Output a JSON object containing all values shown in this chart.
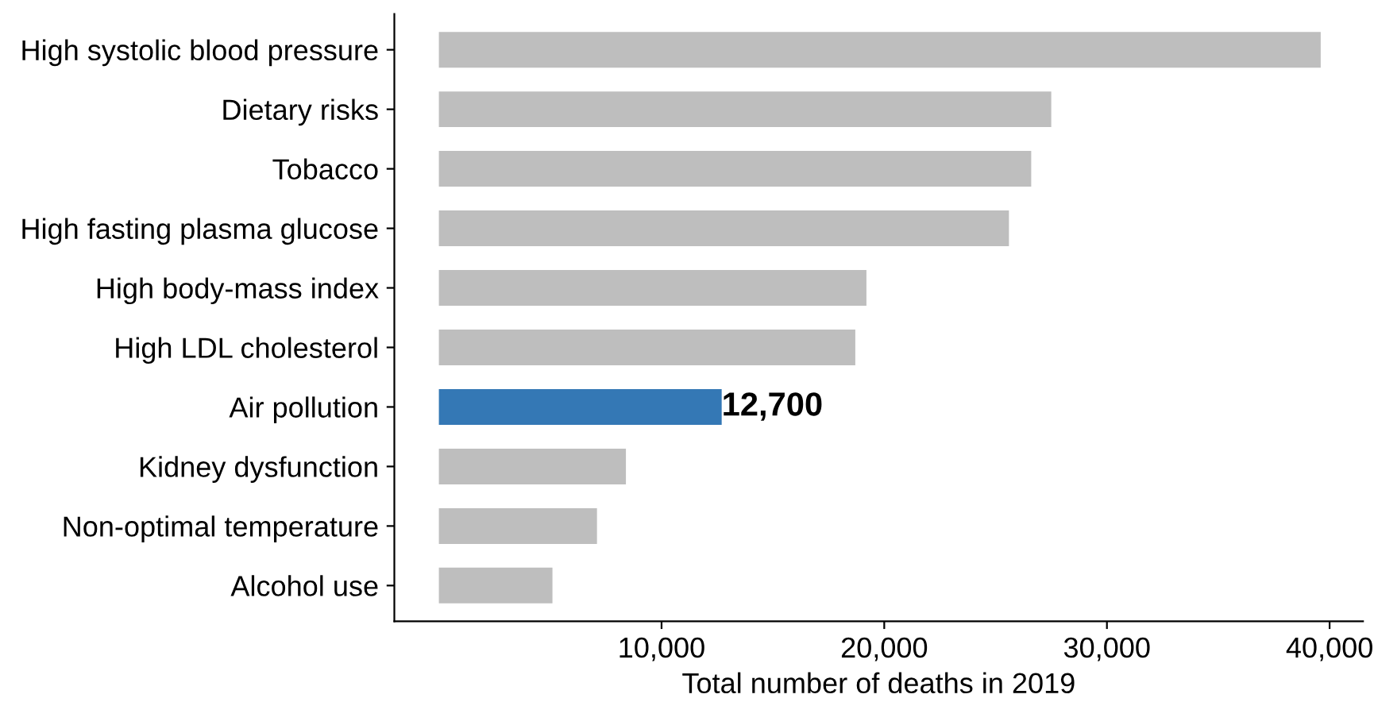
{
  "chart_data": {
    "type": "bar",
    "orientation": "horizontal",
    "xlabel": "Total number of deaths in 2019",
    "categories": [
      "High systolic blood pressure",
      "Dietary risks",
      "Tobacco",
      "High fasting plasma glucose",
      "High body-mass index",
      "High LDL cholesterol",
      "Air pollution",
      "Kidney dysfunction",
      "Non-optimal temperature",
      "Alcohol use"
    ],
    "values": [
      39600,
      27500,
      26600,
      25600,
      19200,
      18700,
      12700,
      8400,
      7100,
      5100
    ],
    "colors": [
      "#bebebe",
      "#bebebe",
      "#bebebe",
      "#bebebe",
      "#bebebe",
      "#bebebe",
      "#3478b5",
      "#bebebe",
      "#bebebe",
      "#bebebe"
    ],
    "value_labels": [
      null,
      null,
      null,
      null,
      null,
      null,
      "12,700",
      null,
      null,
      null
    ],
    "xlim": [
      -2000,
      41500
    ],
    "xticks": [
      {
        "value": 10000,
        "label": "10,000"
      },
      {
        "value": 20000,
        "label": "20,000"
      },
      {
        "value": 30000,
        "label": "30,000"
      },
      {
        "value": 40000,
        "label": "40,000"
      }
    ],
    "grid": false,
    "legend": false
  }
}
